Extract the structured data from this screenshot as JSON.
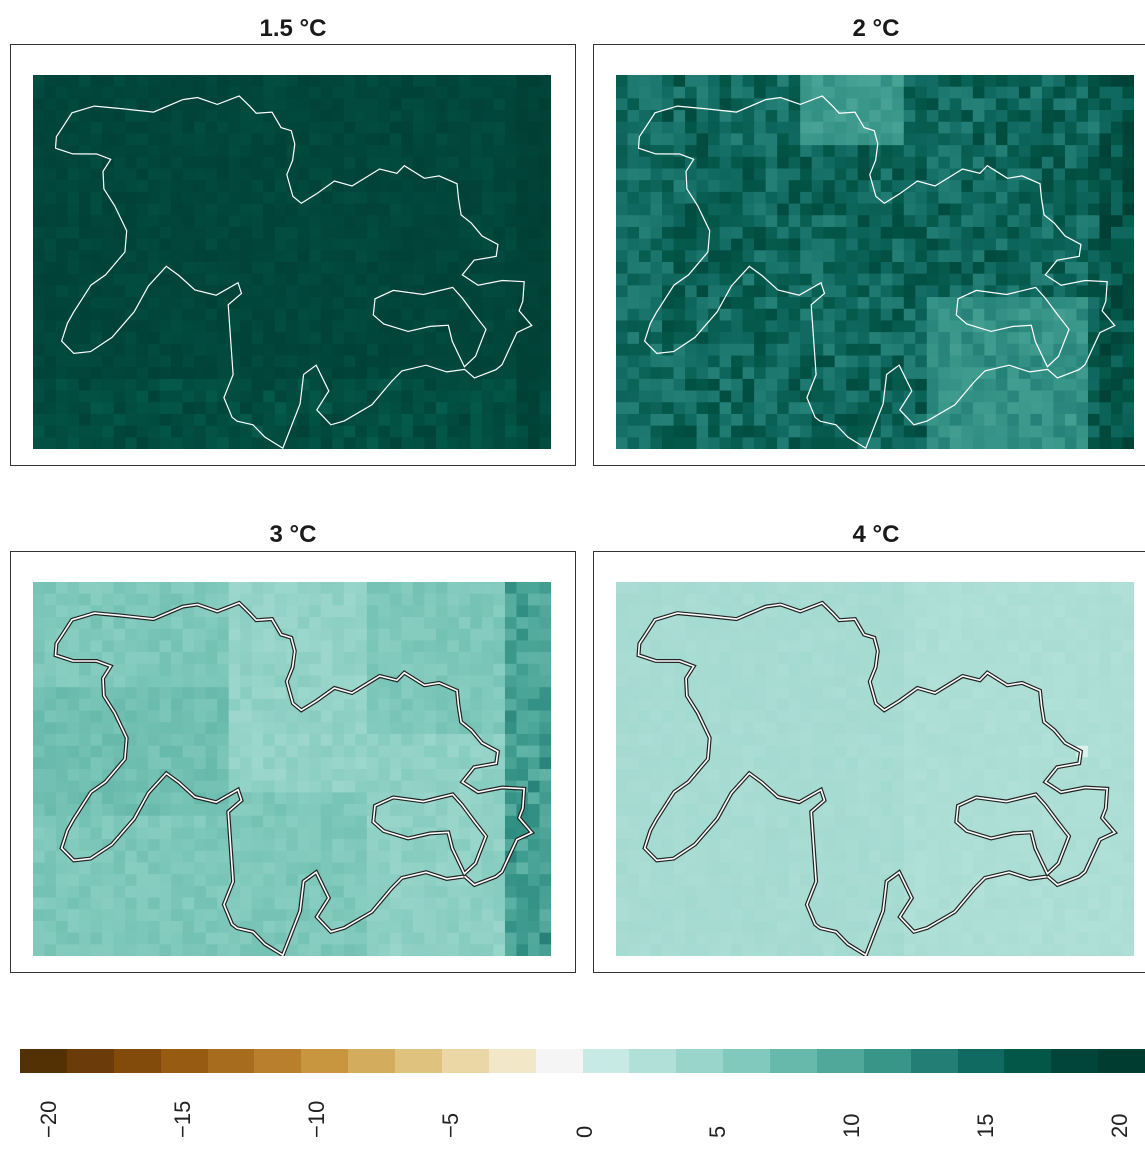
{
  "panels": [
    {
      "title": "1.5 °C",
      "level": 19
    },
    {
      "title": "2 °C",
      "level": 16
    },
    {
      "title": "3 °C",
      "level": 6.5
    },
    {
      "title": "4 °C",
      "level": 3.5
    }
  ],
  "colorbar": {
    "min": -21,
    "max": 21,
    "ticks": [
      "−20",
      "−15",
      "−10",
      "−5",
      "0",
      "5",
      "10",
      "15",
      "20"
    ],
    "colors": [
      "#543005",
      "#6b3c09",
      "#824b0c",
      "#975b12",
      "#a86c1e",
      "#b97f2c",
      "#c7963f",
      "#d4ac5d",
      "#e0c27f",
      "#ead7a5",
      "#f2e8c8",
      "#f5f5f5",
      "#c7eae5",
      "#b0e0d8",
      "#99d5cb",
      "#80c9bc",
      "#66b9ab",
      "#4fa89a",
      "#389689",
      "#237f76",
      "#116a62",
      "#035748",
      "#01443a",
      "#003c30"
    ]
  },
  "map": {
    "outline_light": "#ffffff",
    "outline_dark": "#222222"
  }
}
